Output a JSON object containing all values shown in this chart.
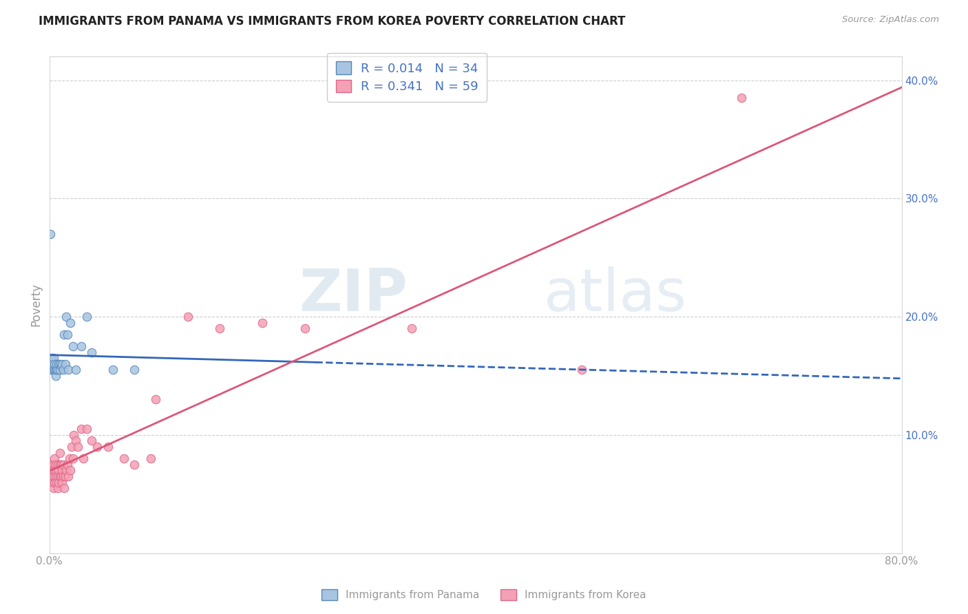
{
  "title": "IMMIGRANTS FROM PANAMA VS IMMIGRANTS FROM KOREA POVERTY CORRELATION CHART",
  "source": "Source: ZipAtlas.com",
  "ylabel": "Poverty",
  "watermark_zip": "ZIP",
  "watermark_atlas": "atlas",
  "xlim": [
    0.0,
    0.8
  ],
  "ylim": [
    0.0,
    0.42
  ],
  "xticks": [
    0.0,
    0.1,
    0.2,
    0.3,
    0.4,
    0.5,
    0.6,
    0.7,
    0.8
  ],
  "xticklabels": [
    "0.0%",
    "",
    "",
    "",
    "",
    "",
    "",
    "",
    "80.0%"
  ],
  "yticks": [
    0.0,
    0.1,
    0.2,
    0.3,
    0.4
  ],
  "yticklabels_right": [
    "",
    "10.0%",
    "20.0%",
    "30.0%",
    "40.0%"
  ],
  "panama_color": "#a8c4e0",
  "korea_color": "#f4a0b5",
  "panama_edge": "#5588bb",
  "korea_edge": "#dd6688",
  "panama_line_color": "#3366bb",
  "korea_line_color": "#dd5577",
  "legend_R_panama": "R = 0.014",
  "legend_N_panama": "N = 34",
  "legend_R_korea": "R = 0.341",
  "legend_N_korea": "N = 59",
  "legend_label_panama": "Immigrants from Panama",
  "legend_label_korea": "Immigrants from Korea",
  "panama_x": [
    0.001,
    0.001,
    0.002,
    0.003,
    0.003,
    0.004,
    0.004,
    0.005,
    0.005,
    0.006,
    0.006,
    0.007,
    0.007,
    0.008,
    0.009,
    0.01,
    0.01,
    0.011,
    0.012,
    0.013,
    0.014,
    0.015,
    0.016,
    0.017,
    0.018,
    0.02,
    0.022,
    0.025,
    0.03,
    0.035,
    0.04,
    0.06,
    0.08,
    0.001
  ],
  "panama_y": [
    0.155,
    0.16,
    0.165,
    0.155,
    0.16,
    0.155,
    0.165,
    0.155,
    0.16,
    0.15,
    0.155,
    0.155,
    0.16,
    0.155,
    0.16,
    0.155,
    0.16,
    0.158,
    0.16,
    0.155,
    0.185,
    0.16,
    0.2,
    0.185,
    0.155,
    0.195,
    0.175,
    0.155,
    0.175,
    0.2,
    0.17,
    0.155,
    0.155,
    0.27
  ],
  "korea_x": [
    0.001,
    0.001,
    0.002,
    0.002,
    0.003,
    0.003,
    0.004,
    0.004,
    0.004,
    0.005,
    0.005,
    0.005,
    0.006,
    0.006,
    0.007,
    0.007,
    0.008,
    0.008,
    0.008,
    0.009,
    0.009,
    0.01,
    0.01,
    0.01,
    0.011,
    0.011,
    0.012,
    0.012,
    0.013,
    0.013,
    0.014,
    0.015,
    0.016,
    0.017,
    0.018,
    0.019,
    0.02,
    0.021,
    0.022,
    0.023,
    0.025,
    0.027,
    0.03,
    0.032,
    0.035,
    0.04,
    0.045,
    0.055,
    0.07,
    0.08,
    0.095,
    0.1,
    0.13,
    0.16,
    0.2,
    0.24,
    0.34,
    0.5,
    0.65
  ],
  "korea_y": [
    0.065,
    0.075,
    0.06,
    0.07,
    0.065,
    0.075,
    0.055,
    0.065,
    0.075,
    0.06,
    0.07,
    0.08,
    0.065,
    0.075,
    0.06,
    0.07,
    0.055,
    0.065,
    0.075,
    0.06,
    0.07,
    0.065,
    0.075,
    0.085,
    0.065,
    0.075,
    0.06,
    0.07,
    0.065,
    0.075,
    0.055,
    0.065,
    0.07,
    0.075,
    0.065,
    0.08,
    0.07,
    0.09,
    0.08,
    0.1,
    0.095,
    0.09,
    0.105,
    0.08,
    0.105,
    0.095,
    0.09,
    0.09,
    0.08,
    0.075,
    0.08,
    0.13,
    0.2,
    0.19,
    0.195,
    0.19,
    0.19,
    0.155,
    0.385
  ],
  "background_color": "#ffffff",
  "grid_color": "#cccccc",
  "title_color": "#222222",
  "axis_color": "#999999"
}
